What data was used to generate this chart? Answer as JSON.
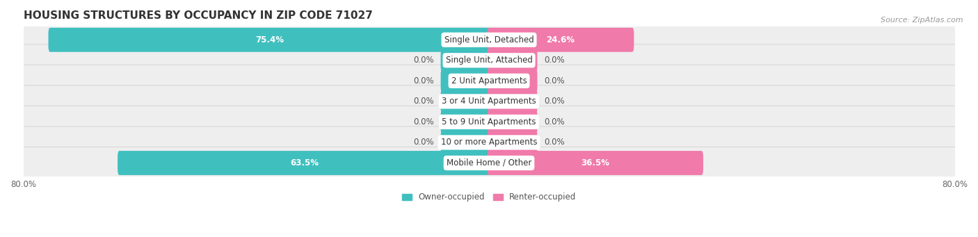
{
  "title": "HOUSING STRUCTURES BY OCCUPANCY IN ZIP CODE 71027",
  "source": "Source: ZipAtlas.com",
  "categories": [
    "Single Unit, Detached",
    "Single Unit, Attached",
    "2 Unit Apartments",
    "3 or 4 Unit Apartments",
    "5 to 9 Unit Apartments",
    "10 or more Apartments",
    "Mobile Home / Other"
  ],
  "owner_values": [
    75.4,
    0.0,
    0.0,
    0.0,
    0.0,
    0.0,
    63.5
  ],
  "renter_values": [
    24.6,
    0.0,
    0.0,
    0.0,
    0.0,
    0.0,
    36.5
  ],
  "owner_color": "#40bfbf",
  "renter_color": "#f07aaa",
  "row_bg_color": "#eeeeee",
  "row_border_color": "#d8d8d8",
  "axis_min": -80.0,
  "axis_max": 80.0,
  "zero_stub": 8.0,
  "title_fontsize": 11,
  "label_fontsize": 8.5,
  "tick_fontsize": 8.5,
  "source_fontsize": 8,
  "value_label_color": "#555555",
  "cat_label_color": "#333333"
}
